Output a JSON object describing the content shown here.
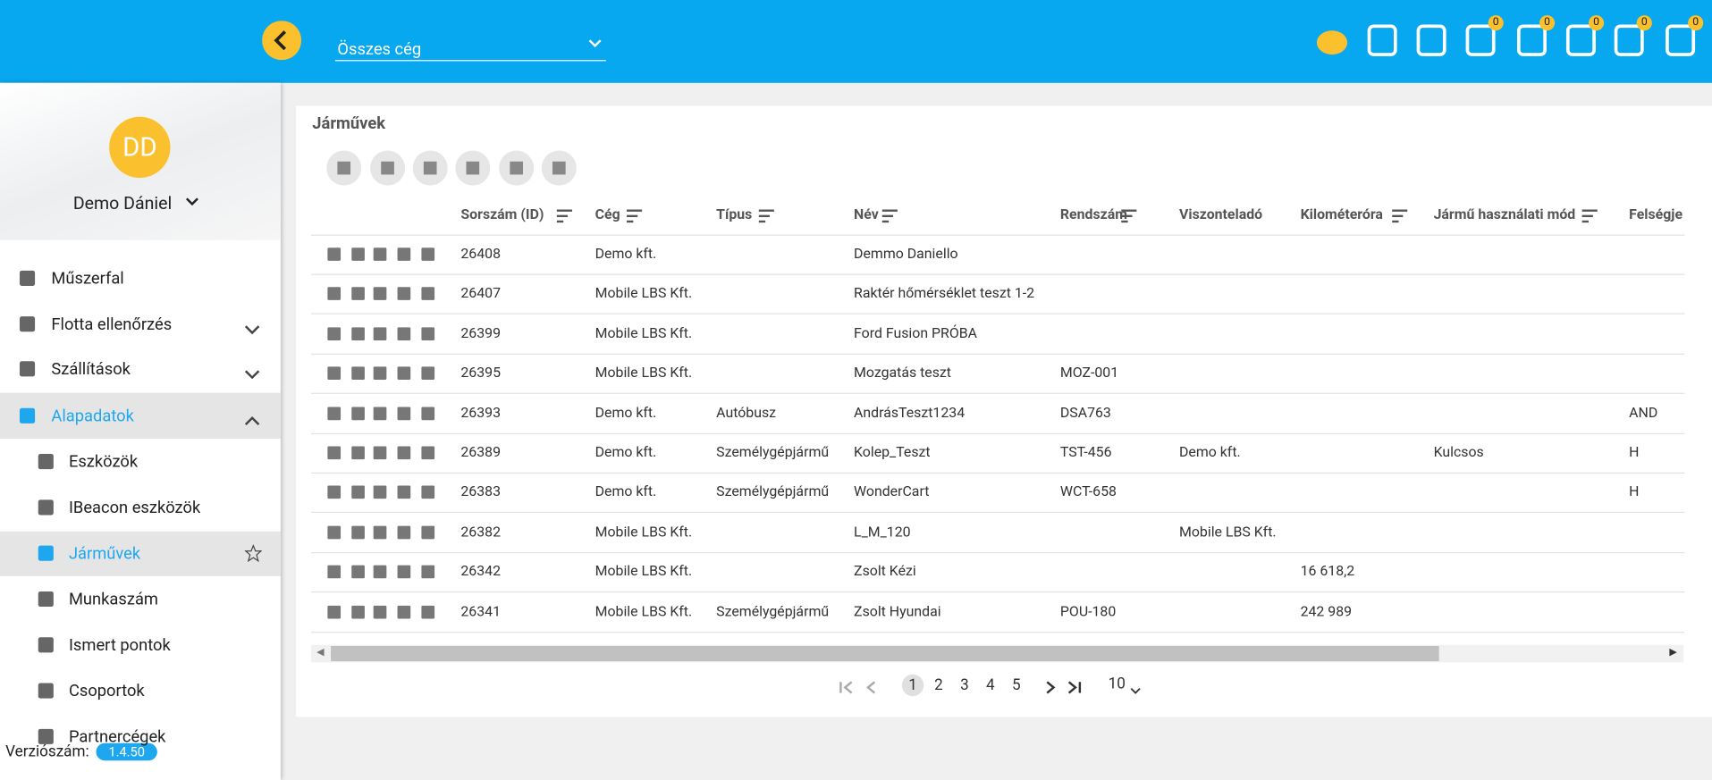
{
  "header": {
    "company_select": "Összes cég",
    "badges": [
      0,
      0,
      0,
      0,
      0
    ]
  },
  "sidebar": {
    "user": {
      "initials": "DD",
      "name": "Demo Dániel"
    },
    "menu": [
      {
        "label": "Műszerfal"
      },
      {
        "label": "Flotta ellenőrzés"
      },
      {
        "label": "Szállítások"
      },
      {
        "label": "Alapadatok"
      },
      {
        "label": "Eszközök"
      },
      {
        "label": "IBeacon eszközök"
      },
      {
        "label": "Járművek"
      },
      {
        "label": "Munkaszám"
      },
      {
        "label": "Ismert pontok"
      },
      {
        "label": "Csoportok"
      },
      {
        "label": "Partnercégek"
      }
    ],
    "version_label": "Verziószám:",
    "version": "1.4.50"
  },
  "page": {
    "title": "Járművek"
  },
  "table": {
    "headers": [
      "Sorszám (ID)",
      "Cég",
      "Típus",
      "Név",
      "Rendszám",
      "Viszonteladó",
      "Kilométeróra",
      "Jármű használati mód",
      "Felségje"
    ],
    "rows": [
      [
        "26408",
        "Demo kft.",
        null,
        "Demmo Daniello",
        null,
        null,
        null,
        null,
        null
      ],
      [
        "26407",
        "Mobile LBS Kft.",
        null,
        "Raktér hőmérséklet teszt 1-2",
        null,
        null,
        null,
        null,
        null
      ],
      [
        "26399",
        "Mobile LBS Kft.",
        null,
        "Ford Fusion PRÓBA",
        null,
        null,
        null,
        null,
        null
      ],
      [
        "26395",
        "Mobile LBS Kft.",
        null,
        "Mozgatás teszt",
        "MOZ-001",
        null,
        null,
        null,
        null
      ],
      [
        "26393",
        "Demo kft.",
        "Autóbusz",
        "AndrásTeszt1234",
        "DSA763",
        null,
        null,
        null,
        "AND"
      ],
      [
        "26389",
        "Demo kft.",
        "Személygépjármű",
        "Kolep_Teszt",
        "TST-456",
        "Demo kft.",
        null,
        "Kulcsos",
        "H"
      ],
      [
        "26383",
        "Demo kft.",
        "Személygépjármű",
        "WonderCart",
        "WCT-658",
        null,
        null,
        null,
        "H"
      ],
      [
        "26382",
        "Mobile LBS Kft.",
        null,
        "L_M_120",
        null,
        "Mobile LBS Kft.",
        null,
        null,
        null
      ],
      [
        "26342",
        "Mobile LBS Kft.",
        null,
        "Zsolt Kézi",
        null,
        null,
        "16 618,2",
        null,
        null
      ],
      [
        "26341",
        "Mobile LBS Kft.",
        "Személygépjármű",
        "Zsolt Hyundai",
        "POU-180",
        null,
        "242 989",
        null,
        null
      ]
    ]
  },
  "pagination": {
    "pages": [
      1,
      2,
      3,
      4,
      5
    ],
    "page_size": "10"
  }
}
